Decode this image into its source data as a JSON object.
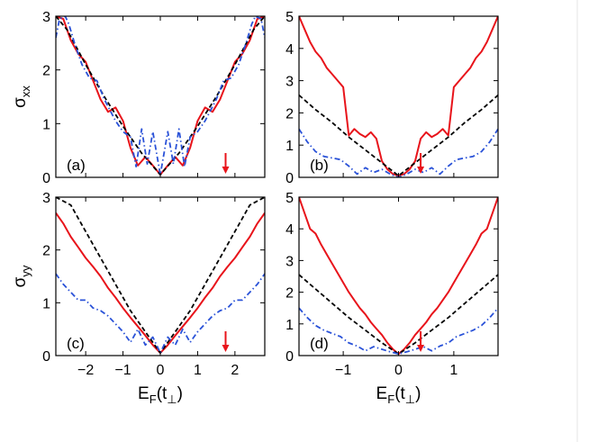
{
  "chart_data": [
    {
      "type": "line",
      "panel_label": "(a)",
      "ylabel": "σ",
      "ylabel_sub": "xx",
      "xlabel": "",
      "xlim": [
        -2.8,
        2.8
      ],
      "ylim": [
        0,
        3
      ],
      "xticks": [
        -2,
        -1,
        0,
        1,
        2
      ],
      "xticklabels": [
        "",
        "",
        "",
        "",
        ""
      ],
      "yticks": [
        0,
        1,
        2,
        3
      ],
      "yticklabels": [
        "0",
        "1",
        "2",
        "3"
      ],
      "arrow_x": 1.75,
      "series": [
        {
          "name": "red-solid",
          "color": "#e8141b",
          "style": "solid",
          "x": [
            0,
            0.2,
            0.4,
            0.6,
            0.8,
            1.0,
            1.2,
            1.4,
            1.6,
            1.8,
            2.0,
            2.2,
            2.4,
            2.6,
            2.8
          ],
          "y": [
            0.05,
            0.22,
            0.38,
            0.22,
            0.55,
            1.05,
            1.3,
            1.22,
            1.45,
            1.8,
            2.15,
            2.3,
            2.55,
            2.95,
            3.0
          ]
        },
        {
          "name": "black-dashed",
          "color": "#000000",
          "style": "dashed",
          "x": [
            0,
            0.5,
            1.0,
            1.5,
            2.0,
            2.5,
            2.8
          ],
          "y": [
            0.05,
            0.45,
            0.95,
            1.5,
            2.1,
            2.75,
            3.0
          ]
        },
        {
          "name": "blue-dashdot",
          "color": "#2a52d8",
          "style": "dashdot",
          "x": [
            0,
            0.2,
            0.35,
            0.5,
            0.65,
            0.8,
            1.0,
            1.2,
            1.35,
            1.5,
            1.7,
            1.9,
            2.1,
            2.3,
            2.45,
            2.55,
            2.7,
            2.8
          ],
          "y": [
            0.05,
            0.85,
            0.25,
            0.9,
            0.2,
            0.75,
            0.85,
            1.05,
            1.25,
            1.45,
            1.8,
            1.85,
            2.1,
            2.5,
            2.85,
            3.0,
            2.95,
            2.6
          ]
        }
      ]
    },
    {
      "type": "line",
      "panel_label": "(b)",
      "ylabel": "",
      "ylabel_sub": "",
      "xlabel": "",
      "xlim": [
        -1.8,
        1.8
      ],
      "ylim": [
        0,
        5
      ],
      "xticks": [
        -1,
        0,
        1
      ],
      "xticklabels": [
        "",
        "",
        ""
      ],
      "yticks": [
        0,
        1,
        2,
        3,
        4,
        5
      ],
      "yticklabels": [
        "0",
        "1",
        "2",
        "3",
        "4",
        "5"
      ],
      "arrow_x": 0.4,
      "series": [
        {
          "name": "red-solid",
          "color": "#e8141b",
          "style": "solid",
          "x": [
            0,
            0.1,
            0.2,
            0.3,
            0.4,
            0.5,
            0.6,
            0.7,
            0.8,
            0.9,
            1.0,
            1.1,
            1.2,
            1.3,
            1.4,
            1.5,
            1.6,
            1.7,
            1.8
          ],
          "y": [
            0.05,
            0.1,
            0.25,
            0.5,
            1.2,
            1.4,
            1.25,
            1.35,
            1.5,
            1.3,
            2.8,
            3.0,
            3.2,
            3.4,
            3.7,
            3.9,
            4.2,
            4.6,
            5.0
          ]
        },
        {
          "name": "black-dashed",
          "color": "#000000",
          "style": "dashed",
          "x": [
            0,
            0.3,
            0.6,
            0.9,
            1.2,
            1.5,
            1.8
          ],
          "y": [
            0.05,
            0.45,
            0.85,
            1.25,
            1.7,
            2.1,
            2.55
          ]
        },
        {
          "name": "blue-dashdot",
          "color": "#2a52d8",
          "style": "dashdot",
          "x": [
            0,
            0.15,
            0.3,
            0.45,
            0.6,
            0.75,
            0.9,
            1.05,
            1.2,
            1.35,
            1.5,
            1.65,
            1.8
          ],
          "y": [
            0.0,
            0.1,
            0.25,
            0.15,
            0.3,
            0.1,
            0.35,
            0.55,
            0.6,
            0.65,
            0.8,
            1.1,
            1.5
          ]
        }
      ]
    },
    {
      "type": "line",
      "panel_label": "(c)",
      "ylabel": "σ",
      "ylabel_sub": "yy",
      "xlabel": "E",
      "xlabel_sub": "F",
      "xlabel_tail": "(t",
      "xlabel_perp": "⊥",
      "xlabel_close": ")",
      "xlim": [
        -2.8,
        2.8
      ],
      "ylim": [
        0,
        3
      ],
      "xticks": [
        -2,
        -1,
        0,
        1,
        2
      ],
      "xticklabels": [
        "−2",
        "−1",
        "0",
        "1",
        "2"
      ],
      "yticks": [
        0,
        1,
        2,
        3
      ],
      "yticklabels": [
        "0",
        "1",
        "2",
        "3"
      ],
      "arrow_x": 1.75,
      "series": [
        {
          "name": "red-solid",
          "color": "#e8141b",
          "style": "solid",
          "x": [
            0,
            0.2,
            0.4,
            0.6,
            0.8,
            1.0,
            1.2,
            1.4,
            1.6,
            1.8,
            2.0,
            2.2,
            2.4,
            2.6,
            2.8
          ],
          "y": [
            0.05,
            0.2,
            0.38,
            0.55,
            0.72,
            0.9,
            1.1,
            1.28,
            1.5,
            1.68,
            1.85,
            2.05,
            2.25,
            2.5,
            2.7
          ]
        },
        {
          "name": "black-dashed",
          "color": "#000000",
          "style": "dashed",
          "x": [
            0,
            0.4,
            0.8,
            1.2,
            1.6,
            2.0,
            2.4,
            2.8
          ],
          "y": [
            0.05,
            0.45,
            0.85,
            1.35,
            1.85,
            2.35,
            2.85,
            3.0
          ]
        },
        {
          "name": "blue-dashdot",
          "color": "#2a52d8",
          "style": "dashdot",
          "x": [
            0,
            0.2,
            0.4,
            0.6,
            0.8,
            1.0,
            1.2,
            1.4,
            1.6,
            1.8,
            2.0,
            2.2,
            2.4,
            2.6,
            2.8
          ],
          "y": [
            0.05,
            0.35,
            0.2,
            0.5,
            0.25,
            0.45,
            0.6,
            0.75,
            0.85,
            0.9,
            1.05,
            1.05,
            1.2,
            1.35,
            1.55
          ]
        }
      ]
    },
    {
      "type": "line",
      "panel_label": "(d)",
      "ylabel": "",
      "ylabel_sub": "",
      "xlabel": "E",
      "xlabel_sub": "F",
      "xlabel_tail": "(t",
      "xlabel_perp": "⊥",
      "xlabel_close": ")",
      "xlim": [
        -1.8,
        1.8
      ],
      "ylim": [
        0,
        5
      ],
      "xticks": [
        -1,
        0,
        1
      ],
      "xticklabels": [
        "−1",
        "0",
        "1"
      ],
      "yticks": [
        0,
        1,
        2,
        3,
        4,
        5
      ],
      "yticklabels": [
        "0",
        "1",
        "2",
        "3",
        "4",
        "5"
      ],
      "arrow_x": 0.4,
      "series": [
        {
          "name": "red-solid",
          "color": "#e8141b",
          "style": "solid",
          "x": [
            0,
            0.1,
            0.2,
            0.3,
            0.4,
            0.5,
            0.6,
            0.7,
            0.8,
            0.9,
            1.0,
            1.1,
            1.2,
            1.3,
            1.4,
            1.5,
            1.6,
            1.7,
            1.8
          ],
          "y": [
            0.05,
            0.2,
            0.4,
            0.65,
            0.85,
            1.05,
            1.3,
            1.5,
            1.75,
            2.0,
            2.3,
            2.6,
            2.9,
            3.2,
            3.5,
            3.85,
            4.0,
            4.5,
            5.0
          ]
        },
        {
          "name": "black-dashed",
          "color": "#000000",
          "style": "dashed",
          "x": [
            0,
            0.3,
            0.6,
            0.9,
            1.2,
            1.5,
            1.8
          ],
          "y": [
            0.05,
            0.4,
            0.8,
            1.2,
            1.65,
            2.1,
            2.55
          ]
        },
        {
          "name": "blue-dashdot",
          "color": "#2a52d8",
          "style": "dashdot",
          "x": [
            0,
            0.15,
            0.3,
            0.45,
            0.6,
            0.75,
            0.9,
            1.05,
            1.2,
            1.35,
            1.5,
            1.65,
            1.8
          ],
          "y": [
            0.05,
            0.12,
            0.2,
            0.28,
            0.15,
            0.3,
            0.4,
            0.6,
            0.7,
            0.8,
            0.95,
            1.2,
            1.5
          ]
        }
      ]
    }
  ]
}
